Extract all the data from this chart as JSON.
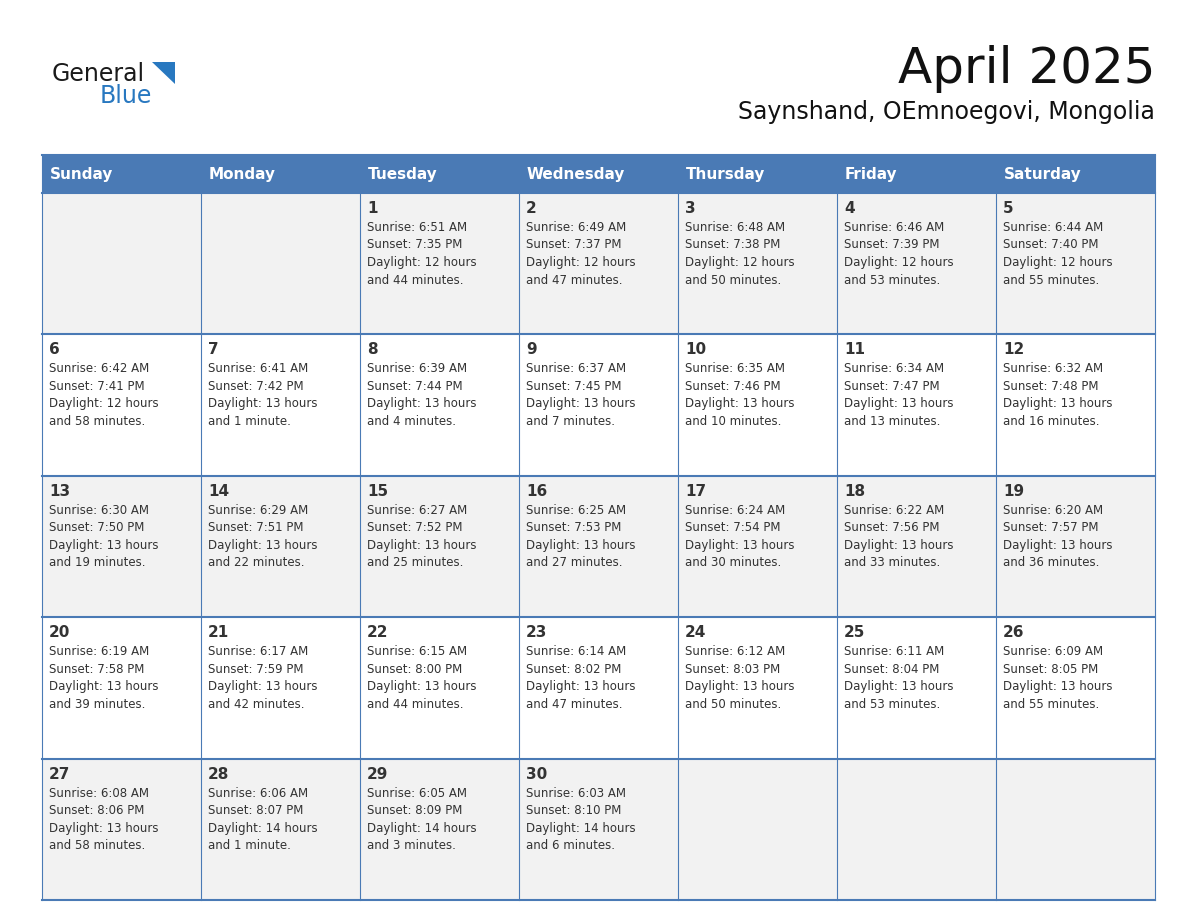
{
  "title": "April 2025",
  "subtitle": "Saynshand, OEmnoegovi, Mongolia",
  "header_bg_color": "#4a7ab5",
  "header_text_color": "#ffffff",
  "cell_bg_even": "#f2f2f2",
  "cell_bg_odd": "#ffffff",
  "text_color": "#333333",
  "grid_color": "#4a7ab5",
  "logo_black": "#1a1a1a",
  "logo_blue": "#2878c0",
  "days_of_week": [
    "Sunday",
    "Monday",
    "Tuesday",
    "Wednesday",
    "Thursday",
    "Friday",
    "Saturday"
  ],
  "weeks": [
    [
      {
        "day": "",
        "lines": []
      },
      {
        "day": "",
        "lines": []
      },
      {
        "day": "1",
        "lines": [
          "Sunrise: 6:51 AM",
          "Sunset: 7:35 PM",
          "Daylight: 12 hours",
          "and 44 minutes."
        ]
      },
      {
        "day": "2",
        "lines": [
          "Sunrise: 6:49 AM",
          "Sunset: 7:37 PM",
          "Daylight: 12 hours",
          "and 47 minutes."
        ]
      },
      {
        "day": "3",
        "lines": [
          "Sunrise: 6:48 AM",
          "Sunset: 7:38 PM",
          "Daylight: 12 hours",
          "and 50 minutes."
        ]
      },
      {
        "day": "4",
        "lines": [
          "Sunrise: 6:46 AM",
          "Sunset: 7:39 PM",
          "Daylight: 12 hours",
          "and 53 minutes."
        ]
      },
      {
        "day": "5",
        "lines": [
          "Sunrise: 6:44 AM",
          "Sunset: 7:40 PM",
          "Daylight: 12 hours",
          "and 55 minutes."
        ]
      }
    ],
    [
      {
        "day": "6",
        "lines": [
          "Sunrise: 6:42 AM",
          "Sunset: 7:41 PM",
          "Daylight: 12 hours",
          "and 58 minutes."
        ]
      },
      {
        "day": "7",
        "lines": [
          "Sunrise: 6:41 AM",
          "Sunset: 7:42 PM",
          "Daylight: 13 hours",
          "and 1 minute."
        ]
      },
      {
        "day": "8",
        "lines": [
          "Sunrise: 6:39 AM",
          "Sunset: 7:44 PM",
          "Daylight: 13 hours",
          "and 4 minutes."
        ]
      },
      {
        "day": "9",
        "lines": [
          "Sunrise: 6:37 AM",
          "Sunset: 7:45 PM",
          "Daylight: 13 hours",
          "and 7 minutes."
        ]
      },
      {
        "day": "10",
        "lines": [
          "Sunrise: 6:35 AM",
          "Sunset: 7:46 PM",
          "Daylight: 13 hours",
          "and 10 minutes."
        ]
      },
      {
        "day": "11",
        "lines": [
          "Sunrise: 6:34 AM",
          "Sunset: 7:47 PM",
          "Daylight: 13 hours",
          "and 13 minutes."
        ]
      },
      {
        "day": "12",
        "lines": [
          "Sunrise: 6:32 AM",
          "Sunset: 7:48 PM",
          "Daylight: 13 hours",
          "and 16 minutes."
        ]
      }
    ],
    [
      {
        "day": "13",
        "lines": [
          "Sunrise: 6:30 AM",
          "Sunset: 7:50 PM",
          "Daylight: 13 hours",
          "and 19 minutes."
        ]
      },
      {
        "day": "14",
        "lines": [
          "Sunrise: 6:29 AM",
          "Sunset: 7:51 PM",
          "Daylight: 13 hours",
          "and 22 minutes."
        ]
      },
      {
        "day": "15",
        "lines": [
          "Sunrise: 6:27 AM",
          "Sunset: 7:52 PM",
          "Daylight: 13 hours",
          "and 25 minutes."
        ]
      },
      {
        "day": "16",
        "lines": [
          "Sunrise: 6:25 AM",
          "Sunset: 7:53 PM",
          "Daylight: 13 hours",
          "and 27 minutes."
        ]
      },
      {
        "day": "17",
        "lines": [
          "Sunrise: 6:24 AM",
          "Sunset: 7:54 PM",
          "Daylight: 13 hours",
          "and 30 minutes."
        ]
      },
      {
        "day": "18",
        "lines": [
          "Sunrise: 6:22 AM",
          "Sunset: 7:56 PM",
          "Daylight: 13 hours",
          "and 33 minutes."
        ]
      },
      {
        "day": "19",
        "lines": [
          "Sunrise: 6:20 AM",
          "Sunset: 7:57 PM",
          "Daylight: 13 hours",
          "and 36 minutes."
        ]
      }
    ],
    [
      {
        "day": "20",
        "lines": [
          "Sunrise: 6:19 AM",
          "Sunset: 7:58 PM",
          "Daylight: 13 hours",
          "and 39 minutes."
        ]
      },
      {
        "day": "21",
        "lines": [
          "Sunrise: 6:17 AM",
          "Sunset: 7:59 PM",
          "Daylight: 13 hours",
          "and 42 minutes."
        ]
      },
      {
        "day": "22",
        "lines": [
          "Sunrise: 6:15 AM",
          "Sunset: 8:00 PM",
          "Daylight: 13 hours",
          "and 44 minutes."
        ]
      },
      {
        "day": "23",
        "lines": [
          "Sunrise: 6:14 AM",
          "Sunset: 8:02 PM",
          "Daylight: 13 hours",
          "and 47 minutes."
        ]
      },
      {
        "day": "24",
        "lines": [
          "Sunrise: 6:12 AM",
          "Sunset: 8:03 PM",
          "Daylight: 13 hours",
          "and 50 minutes."
        ]
      },
      {
        "day": "25",
        "lines": [
          "Sunrise: 6:11 AM",
          "Sunset: 8:04 PM",
          "Daylight: 13 hours",
          "and 53 minutes."
        ]
      },
      {
        "day": "26",
        "lines": [
          "Sunrise: 6:09 AM",
          "Sunset: 8:05 PM",
          "Daylight: 13 hours",
          "and 55 minutes."
        ]
      }
    ],
    [
      {
        "day": "27",
        "lines": [
          "Sunrise: 6:08 AM",
          "Sunset: 8:06 PM",
          "Daylight: 13 hours",
          "and 58 minutes."
        ]
      },
      {
        "day": "28",
        "lines": [
          "Sunrise: 6:06 AM",
          "Sunset: 8:07 PM",
          "Daylight: 14 hours",
          "and 1 minute."
        ]
      },
      {
        "day": "29",
        "lines": [
          "Sunrise: 6:05 AM",
          "Sunset: 8:09 PM",
          "Daylight: 14 hours",
          "and 3 minutes."
        ]
      },
      {
        "day": "30",
        "lines": [
          "Sunrise: 6:03 AM",
          "Sunset: 8:10 PM",
          "Daylight: 14 hours",
          "and 6 minutes."
        ]
      },
      {
        "day": "",
        "lines": []
      },
      {
        "day": "",
        "lines": []
      },
      {
        "day": "",
        "lines": []
      }
    ]
  ]
}
